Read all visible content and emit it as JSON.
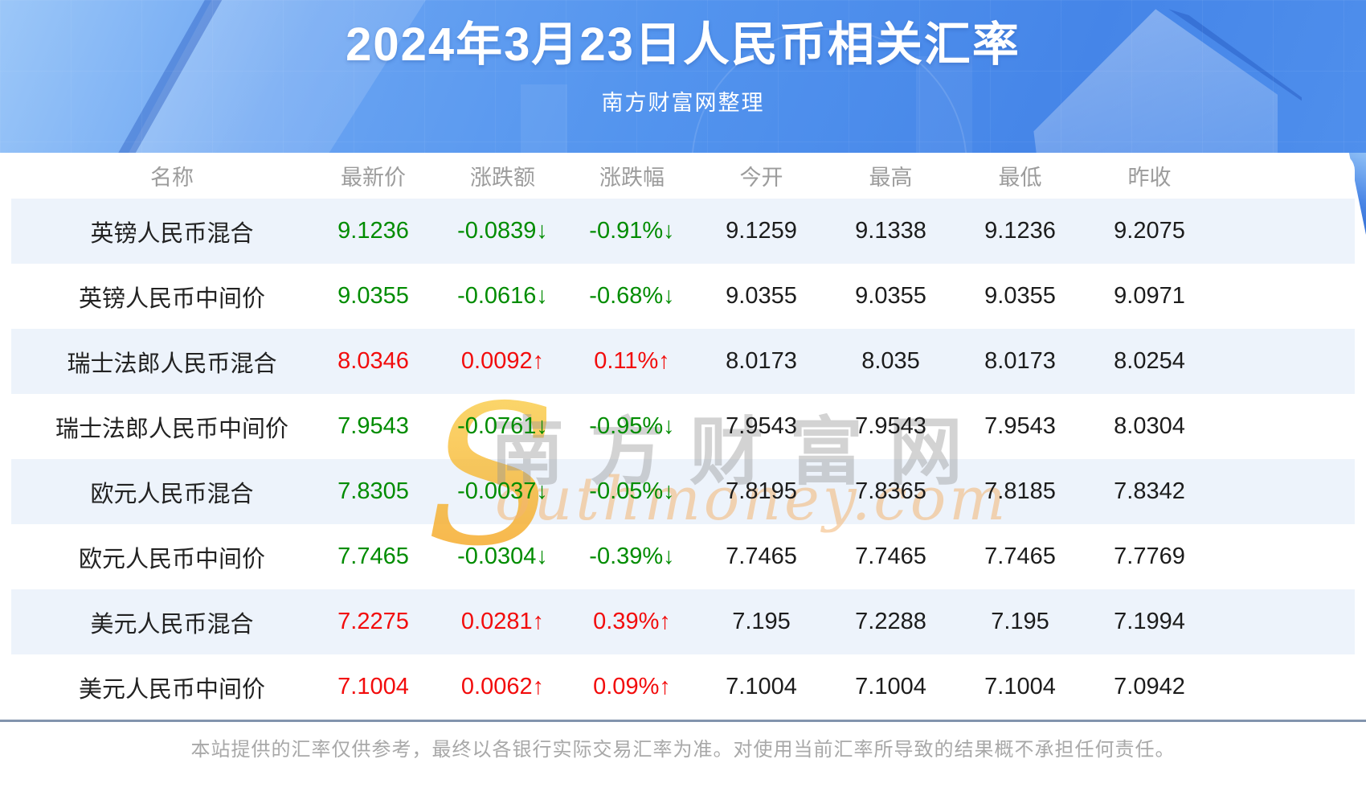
{
  "header": {
    "title": "2024年3月23日人民币相关汇率",
    "subtitle": "南方财富网整理"
  },
  "watermark": {
    "cn": "南方财富网",
    "en": "outhmoney.com"
  },
  "chart_data": {
    "type": "table",
    "title": "2024年3月23日人民币相关汇率",
    "columns": [
      "名称",
      "最新价",
      "涨跌额",
      "涨跌幅",
      "今开",
      "最高",
      "最低",
      "昨收"
    ],
    "rows": [
      {
        "name": "英镑人民币混合",
        "last": "9.1236",
        "change": "-0.0839↓",
        "pct": "-0.91%↓",
        "open": "9.1259",
        "high": "9.1338",
        "low": "9.1236",
        "prev": "9.2075",
        "trend": "down"
      },
      {
        "name": "英镑人民币中间价",
        "last": "9.0355",
        "change": "-0.0616↓",
        "pct": "-0.68%↓",
        "open": "9.0355",
        "high": "9.0355",
        "low": "9.0355",
        "prev": "9.0971",
        "trend": "down"
      },
      {
        "name": "瑞士法郎人民币混合",
        "last": "8.0346",
        "change": "0.0092↑",
        "pct": "0.11%↑",
        "open": "8.0173",
        "high": "8.035",
        "low": "8.0173",
        "prev": "8.0254",
        "trend": "up"
      },
      {
        "name": "瑞士法郎人民币中间价",
        "last": "7.9543",
        "change": "-0.0761↓",
        "pct": "-0.95%↓",
        "open": "7.9543",
        "high": "7.9543",
        "low": "7.9543",
        "prev": "8.0304",
        "trend": "down"
      },
      {
        "name": "欧元人民币混合",
        "last": "7.8305",
        "change": "-0.0037↓",
        "pct": "-0.05%↓",
        "open": "7.8195",
        "high": "7.8365",
        "low": "7.8185",
        "prev": "7.8342",
        "trend": "down"
      },
      {
        "name": "欧元人民币中间价",
        "last": "7.7465",
        "change": "-0.0304↓",
        "pct": "-0.39%↓",
        "open": "7.7465",
        "high": "7.7465",
        "low": "7.7465",
        "prev": "7.7769",
        "trend": "down"
      },
      {
        "name": "美元人民币混合",
        "last": "7.2275",
        "change": "0.0281↑",
        "pct": "0.39%↑",
        "open": "7.195",
        "high": "7.2288",
        "low": "7.195",
        "prev": "7.1994",
        "trend": "up"
      },
      {
        "name": "美元人民币中间价",
        "last": "7.1004",
        "change": "0.0062↑",
        "pct": "0.09%↑",
        "open": "7.1004",
        "high": "7.1004",
        "low": "7.1004",
        "prev": "7.0942",
        "trend": "up"
      }
    ],
    "layout": {
      "striped_rows": "odd",
      "stripe_color": "#edf3fb",
      "header_text_color": "#9c9c9c"
    }
  },
  "colors": {
    "up_red": "#f20c0c",
    "down_green": "#008c00",
    "banner_blue": "#5394ee",
    "stripe": "#edf3fb",
    "divider": "#8294ad",
    "watermark_orange": "#f5a31f"
  },
  "footer": {
    "disclaimer": "本站提供的汇率仅供参考，最终以各银行实际交易汇率为准。对使用当前汇率所导致的结果概不承担任何责任。"
  }
}
